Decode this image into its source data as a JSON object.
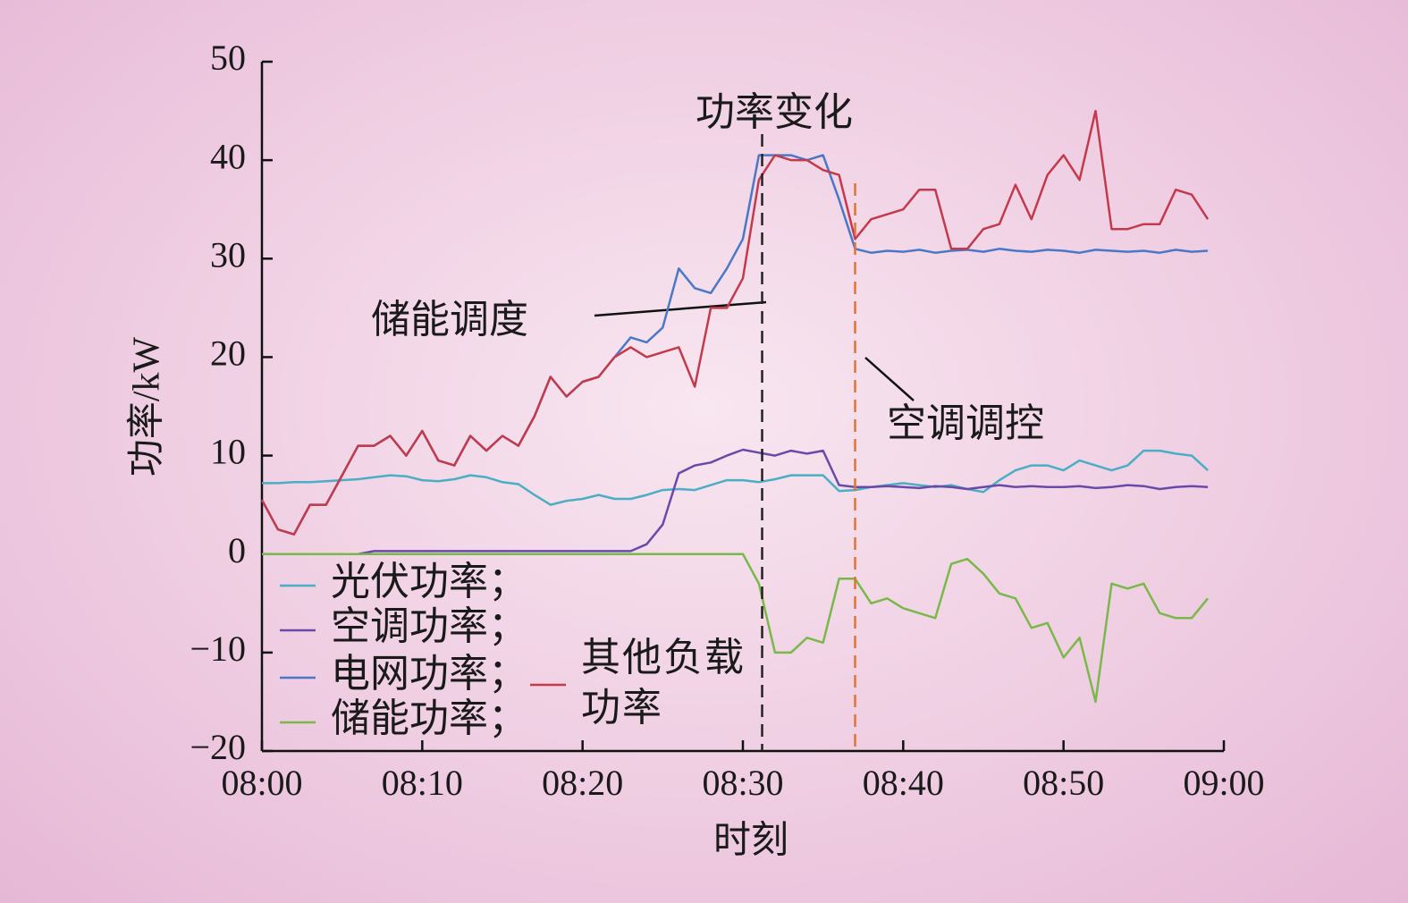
{
  "chart_data": {
    "type": "line",
    "x_label": "时刻",
    "y_label": "功率/kW",
    "xlim": [
      0,
      60
    ],
    "xticks": [
      {
        "value": 0,
        "label": "08:00"
      },
      {
        "value": 10,
        "label": "08:10"
      },
      {
        "value": 20,
        "label": "08:20"
      },
      {
        "value": 30,
        "label": "08:30"
      },
      {
        "value": 40,
        "label": "08:40"
      },
      {
        "value": 50,
        "label": "08:50"
      },
      {
        "value": 60,
        "label": "09:00"
      }
    ],
    "ylim": [
      -20,
      50
    ],
    "yticks": [
      {
        "value": -20,
        "label": "−20"
      },
      {
        "value": -10,
        "label": "−10"
      },
      0,
      10,
      20,
      30,
      40,
      50
    ],
    "x": [
      0,
      1,
      2,
      3,
      4,
      5,
      6,
      7,
      8,
      9,
      10,
      11,
      12,
      13,
      14,
      15,
      16,
      17,
      18,
      19,
      20,
      21,
      22,
      23,
      24,
      25,
      26,
      27,
      28,
      29,
      30,
      31,
      32,
      33,
      34,
      35,
      36,
      37,
      38,
      39,
      40,
      41,
      42,
      43,
      44,
      45,
      46,
      47,
      48,
      49,
      50,
      51,
      52,
      53,
      54,
      55,
      56,
      57,
      58,
      59
    ],
    "series": [
      {
        "name": "光伏功率；",
        "color": "#4aaec4",
        "values": [
          7.2,
          7.2,
          7.3,
          7.3,
          7.4,
          7.5,
          7.6,
          7.8,
          8,
          7.9,
          7.5,
          7.4,
          7.6,
          8,
          7.8,
          7.3,
          7.1,
          6,
          5,
          5.4,
          5.6,
          6,
          5.6,
          5.6,
          6,
          6.5,
          6.6,
          6.5,
          7,
          7.5,
          7.5,
          7.3,
          7.6,
          8,
          8,
          8,
          6.4,
          6.5,
          6.8,
          7,
          7.2,
          7,
          6.8,
          7,
          6.6,
          6.3,
          7.5,
          8.5,
          9,
          9,
          8.5,
          9.5,
          9,
          8.5,
          9,
          10.5,
          10.5,
          10.2,
          10,
          8.5
        ]
      },
      {
        "name": "空调功率；",
        "color": "#6a4aa8",
        "values": [
          0,
          0,
          0,
          0,
          0,
          0,
          0,
          0.3,
          0.3,
          0.3,
          0.3,
          0.3,
          0.3,
          0.3,
          0.3,
          0.3,
          0.3,
          0.3,
          0.3,
          0.3,
          0.3,
          0.3,
          0.3,
          0.3,
          1,
          3,
          8.2,
          9,
          9.3,
          10,
          10.6,
          10.3,
          10,
          10.5,
          10.2,
          10.5,
          7,
          6.8,
          6.8,
          6.9,
          6.8,
          6.7,
          6.9,
          6.8,
          6.6,
          6.8,
          7,
          6.8,
          6.9,
          6.8,
          6.8,
          6.9,
          6.7,
          6.8,
          7,
          6.9,
          6.6,
          6.8,
          6.9,
          6.8
        ]
      },
      {
        "name": "电网功率；",
        "color": "#4a78c6",
        "values": [
          5.5,
          2.5,
          2,
          5,
          5,
          8,
          11,
          11,
          12,
          10,
          12.5,
          9.5,
          9,
          12,
          10.5,
          12,
          11,
          14,
          18,
          16,
          17.5,
          18,
          20,
          22,
          21.5,
          23,
          29,
          27,
          26.5,
          29,
          32,
          40.5,
          40.5,
          40.5,
          40,
          40.5,
          36,
          31,
          30.6,
          30.8,
          30.7,
          30.9,
          30.6,
          30.8,
          30.9,
          30.7,
          31,
          30.8,
          30.7,
          30.9,
          30.8,
          30.6,
          30.9,
          30.8,
          30.7,
          30.8,
          30.6,
          30.9,
          30.7,
          30.8
        ]
      },
      {
        "name": "储能功率；",
        "color": "#7ab84a",
        "values": [
          0,
          0,
          0,
          0,
          0,
          0,
          0,
          0,
          0,
          0,
          0,
          0,
          0,
          0,
          0,
          0,
          0,
          0,
          0,
          0,
          0,
          0,
          0,
          0,
          0,
          0,
          0,
          0,
          0,
          0,
          0,
          -3,
          -10,
          -10,
          -8.5,
          -9,
          -2.5,
          -2.5,
          -5,
          -4.5,
          -5.5,
          -6,
          -6.5,
          -1,
          -0.5,
          -2,
          -4,
          -4.5,
          -7.5,
          -7,
          -10.5,
          -8.5,
          -15,
          -3,
          -3.5,
          -3,
          -6,
          -6.5,
          -6.5,
          -4.5
        ]
      },
      {
        "name": "其他负载功率",
        "color": "#c23a4c",
        "values": [
          5.5,
          2.5,
          2,
          5,
          5,
          8,
          11,
          11,
          12,
          10,
          12.5,
          9.5,
          9,
          12,
          10.5,
          12,
          11,
          14,
          18,
          16,
          17.5,
          18,
          20,
          21,
          20,
          20.5,
          21,
          17,
          25,
          25,
          28,
          38,
          40.5,
          40,
          40,
          39,
          38.5,
          32,
          34,
          34.5,
          35,
          37,
          37,
          31,
          31,
          33,
          33.5,
          37.5,
          34,
          38.5,
          40.5,
          38,
          45,
          33,
          33,
          33.5,
          33.5,
          37,
          36.5,
          34
        ]
      }
    ],
    "markers": [
      {
        "x": 31.2,
        "color": "#222222"
      },
      {
        "x": 37,
        "color": "#e07434"
      }
    ],
    "annotations": [
      "功率变化",
      "储能调度",
      "空调调控"
    ]
  }
}
